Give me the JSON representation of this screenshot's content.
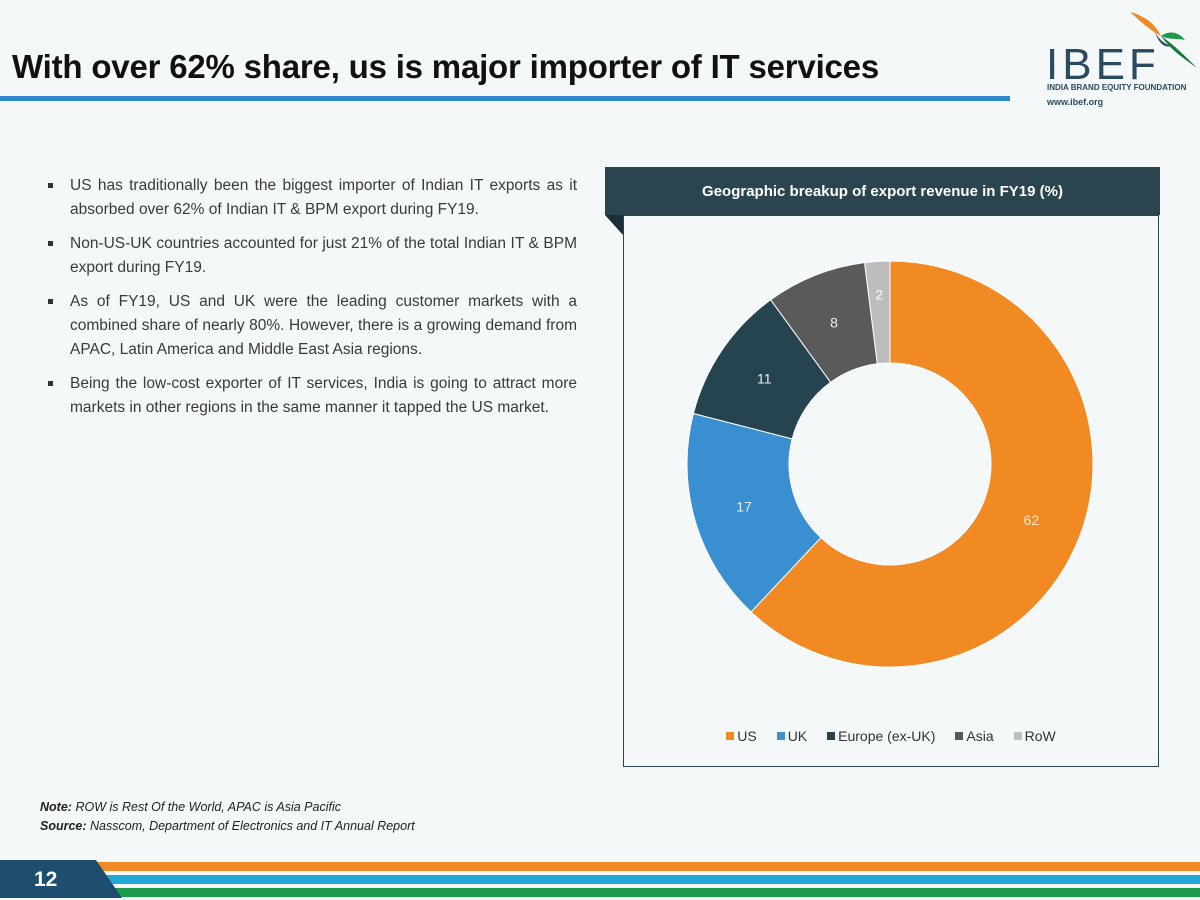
{
  "header": {
    "title": "With over 62% share, us is major importer of IT services"
  },
  "logo": {
    "word": "IBEF",
    "subtitle": "INDIA BRAND EQUITY FOUNDATION",
    "url": "www.ibef.org"
  },
  "bullets": [
    "US has traditionally been the biggest importer of Indian IT exports as it absorbed over 62% of Indian IT & BPM export during FY19.",
    "Non-US-UK countries accounted for just 21% of the total Indian IT & BPM export during FY19.",
    "As of FY19, US and UK were the leading customer markets with a combined share of nearly 80%. However, there is a growing demand from APAC, Latin America and Middle East Asia regions.",
    "Being the low-cost exporter of IT services, India is going to attract more markets in other regions in the same manner it tapped the US market."
  ],
  "chart_data": {
    "type": "pie",
    "donut": true,
    "title": "Geographic breakup of export revenue in FY19 (%)",
    "categories": [
      "US",
      "UK",
      "Europe (ex-UK)",
      "Asia",
      "RoW"
    ],
    "values": [
      62,
      17,
      11,
      8,
      2
    ],
    "colors": [
      "#f28a24",
      "#3a8fd0",
      "#26444f",
      "#5a5a5a",
      "#bdbdbd"
    ],
    "legend_position": "bottom"
  },
  "footer": {
    "note_label": "Note:",
    "note_text": "ROW is Rest Of the World, APAC is Asia Pacific",
    "source_label": "Source:",
    "source_text": "Nasscom, Department of Electronics and IT Annual Report",
    "page_number": "12"
  },
  "colors": {
    "accent_blue": "#2e88c7",
    "dark_teal": "#2a4450",
    "orange": "#f28a24",
    "green": "#1a9a4a",
    "cyan": "#22a7d8"
  }
}
